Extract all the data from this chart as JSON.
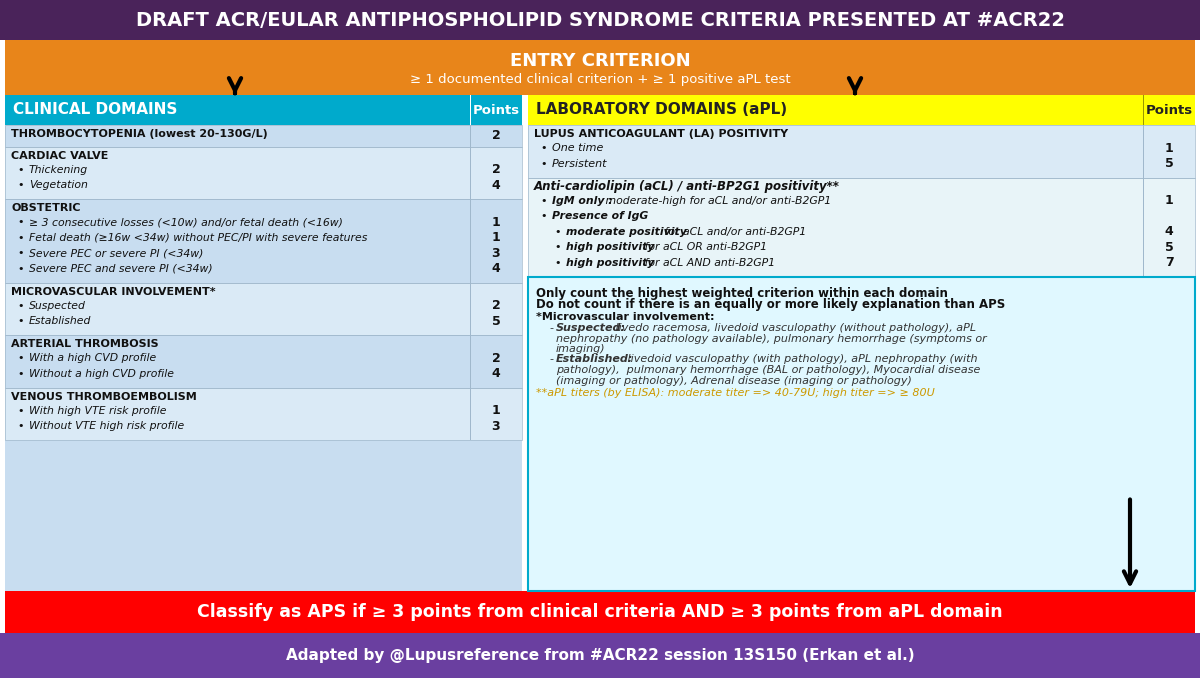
{
  "title": "DRAFT ACR/EULAR ANTIPHOSPHOLIPID SYNDROME CRITERIA PRESENTED AT #ACR22",
  "title_bg": "#4a235a",
  "title_color": "#ffffff",
  "entry_bg": "#e8851a",
  "entry_title": "ENTRY CRITERION",
  "entry_subtitle": "≥ 1 documented clinical criterion + ≥ 1 positive aPL test",
  "clinical_header": "CLINICAL DOMAINS",
  "clinical_header_bg": "#00aacc",
  "points_header": "Points",
  "lab_header": "LABORATORY DOMAINS (aPL)",
  "lab_header_bg": "#ffff00",
  "lab_points_header": "Points",
  "clinical_sections": [
    {
      "title": "VENOUS THROMBOEMBOLISM",
      "items": [
        {
          "text": "With high VTE risk profile",
          "points": "1"
        },
        {
          "text": "Without VTE high risk profile",
          "points": "3"
        }
      ]
    },
    {
      "title": "ARTERIAL THROMBOSIS",
      "items": [
        {
          "text": "With a high CVD profile",
          "points": "2"
        },
        {
          "text": "Without a high CVD profile",
          "points": "4"
        }
      ]
    },
    {
      "title": "MICROVASCULAR INVOLVEMENT*",
      "items": [
        {
          "text": "Suspected",
          "points": "2"
        },
        {
          "text": "Established",
          "points": "5"
        }
      ]
    },
    {
      "title": "OBSTETRIC",
      "items": [
        {
          "text": "≥ 3 consecutive losses (<10w) and/or fetal death (<16w)",
          "points": "1"
        },
        {
          "text": "Fetal death (≥16w <34w) without PEC/PI with severe features",
          "points": "1"
        },
        {
          "text": "Severe PEC or severe PI (<34w)",
          "points": "3"
        },
        {
          "text": "Severe PEC and severe PI (<34w)",
          "points": "4"
        }
      ]
    },
    {
      "title": "CARDIAC VALVE",
      "items": [
        {
          "text": "Thickening",
          "points": "2"
        },
        {
          "text": "Vegetation",
          "points": "4"
        }
      ]
    },
    {
      "title": "THROMBOCYTOPENIA (lowest 20-130G/L)",
      "items": [],
      "points": "2"
    }
  ],
  "note_text1a": "Only count the ",
  "note_text1b": "highest weighted criterion",
  "note_text1c": " within each domain",
  "note_text2a": "Do not count",
  "note_text2b": " if there is an equally or more likely explanation than APS",
  "note_text3": "*Microvascular involvement:",
  "note_text4": "    -",
  "note_text4b": "Suspected:",
  "note_text4c": " livedo racemosa, livedoid vasculopathy (without pathology), aPL\n    nephropathy (no pathology available), pulmonary hemorrhage (symptoms or\n    imaging)",
  "note_text5": "    -",
  "note_text5b": "Established:",
  "note_text5c": " livedoid vasculopathy (with pathology), aPL nephropathy (with\n    pathology),  pulmonary hemorrhage (BAL or pathology), Myocardial disease\n    (imaging or pathology), Adrenal disease (imaging or pathology)",
  "note_text6": "**aPL titers (by ELISA): moderate titer => 40-79U; high titer => ≥ 80U",
  "bottom_bar_bg": "#ff0000",
  "bottom_bar_text": "Classify as APS if ≥ 3 points from clinical criteria AND ≥ 3 points from aPL domain",
  "footer_bg": "#6a3fa0",
  "footer_text": "Adapted by @Lupusreference from #ACR22 session 13S150 (Erkan et al.)",
  "footer_color": "#ffffff"
}
